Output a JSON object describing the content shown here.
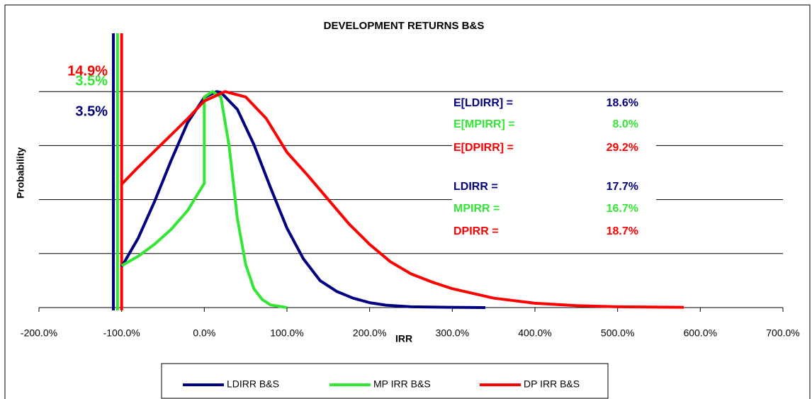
{
  "chart_data": {
    "type": "line",
    "title": "DEVELOPMENT RETURNS B&S",
    "xlabel": "IRR",
    "ylabel": "Probability",
    "xlim": [
      -200,
      700
    ],
    "xticks": [
      {
        "value": -200,
        "label": "-200.0%"
      },
      {
        "value": -100,
        "label": "-100.0%"
      },
      {
        "value": 0,
        "label": "0.0%"
      },
      {
        "value": 100,
        "label": "100.0%"
      },
      {
        "value": 200,
        "label": "200.0%"
      },
      {
        "value": 300,
        "label": "300.0%"
      },
      {
        "value": 400,
        "label": "400.0%"
      },
      {
        "value": 500,
        "label": "500.0%"
      },
      {
        "value": 600,
        "label": "600.0%"
      },
      {
        "value": 700,
        "label": "700.0%"
      }
    ],
    "ylim": [
      0,
      1
    ],
    "yticks": [
      0,
      0.2,
      0.4,
      0.6,
      0.8
    ],
    "grid": true,
    "series": [
      {
        "name": "LDIRR B&S",
        "color": "#000080",
        "x": [
          -100,
          -80,
          -60,
          -40,
          -20,
          0,
          15,
          20,
          40,
          60,
          80,
          100,
          120,
          140,
          160,
          180,
          200,
          220,
          250,
          300,
          340
        ],
        "values": [
          0.151,
          0.257,
          0.394,
          0.546,
          0.686,
          0.778,
          0.8,
          0.797,
          0.734,
          0.604,
          0.445,
          0.294,
          0.18,
          0.1,
          0.06,
          0.035,
          0.018,
          0.009,
          0.003,
          0.001,
          0
        ]
      },
      {
        "name": "MP IRR B&S",
        "color": "#33e633",
        "x": [
          -100,
          -80,
          -60,
          -40,
          -20,
          0,
          0,
          10,
          20,
          30,
          40,
          50,
          60,
          70,
          80,
          100
        ],
        "values": [
          0.155,
          0.19,
          0.235,
          0.29,
          0.36,
          0.46,
          0.78,
          0.8,
          0.78,
          0.6,
          0.33,
          0.16,
          0.07,
          0.03,
          0.01,
          0
        ]
      },
      {
        "name": "DP IRR B&S",
        "color": "#ff0000",
        "x": [
          -100,
          -80,
          -60,
          -40,
          -20,
          0,
          25,
          50,
          75,
          100,
          125,
          150,
          175,
          200,
          225,
          250,
          275,
          300,
          350,
          400,
          450,
          500,
          580
        ],
        "values": [
          0.457,
          0.52,
          0.58,
          0.64,
          0.7,
          0.765,
          0.8,
          0.78,
          0.7,
          0.575,
          0.49,
          0.4,
          0.31,
          0.234,
          0.17,
          0.125,
          0.095,
          0.07,
          0.035,
          0.016,
          0.007,
          0.003,
          0.001
        ]
      }
    ],
    "reference_lines": [
      {
        "x": -110,
        "color": "#000080"
      },
      {
        "x": -105,
        "color": "#33e633"
      },
      {
        "x": -100,
        "color": "#ff0000"
      }
    ],
    "annotations": [
      {
        "text": "14.9%",
        "color": "#ff0000"
      },
      {
        "text": "3.5%",
        "color": "#33e633"
      },
      {
        "text": "3.5%",
        "color": "#000080"
      }
    ],
    "stats": [
      {
        "label": "E[LDIRR] =",
        "value": "18.6%",
        "color": "#000080"
      },
      {
        "label": "E[MPIRR] =",
        "value": "8.0%",
        "color": "#33e633"
      },
      {
        "label": "E[DPIRR] =",
        "value": "29.2%",
        "color": "#ff0000"
      },
      {
        "label": "LDIRR =",
        "value": "17.7%",
        "color": "#000080"
      },
      {
        "label": "MPIRR =",
        "value": "16.7%",
        "color": "#33e633"
      },
      {
        "label": "DPIRR =",
        "value": "18.7%",
        "color": "#ff0000"
      }
    ]
  }
}
